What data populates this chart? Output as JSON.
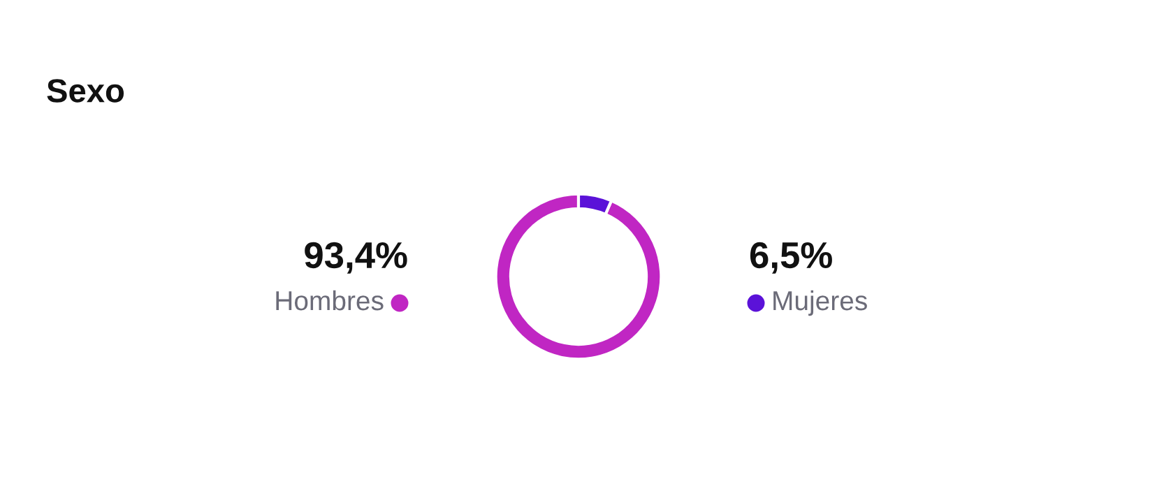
{
  "chart_data": {
    "type": "donut",
    "title": "Sexo",
    "categories": [
      "Hombres",
      "Mujeres"
    ],
    "values": [
      93.4,
      6.5
    ],
    "colors": [
      "#c026c3",
      "#5b12d8"
    ],
    "value_labels": [
      "93,4%",
      "6,5%"
    ]
  }
}
